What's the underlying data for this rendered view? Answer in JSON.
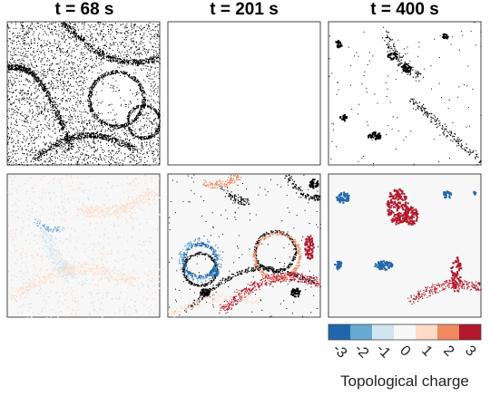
{
  "panels": [
    {
      "title": "t = 68 s"
    },
    {
      "title": "t = 201 s"
    },
    {
      "title": "t = 400 s"
    }
  ],
  "colorbar": {
    "ticks": [
      -3,
      -2,
      -1,
      0,
      1,
      2,
      3
    ],
    "colors": [
      "#2166ac",
      "#67a9cf",
      "#d1e5f0",
      "#f7f7f7",
      "#fddbc7",
      "#ef8a62",
      "#b2182b"
    ],
    "label": "Topological charge"
  }
}
